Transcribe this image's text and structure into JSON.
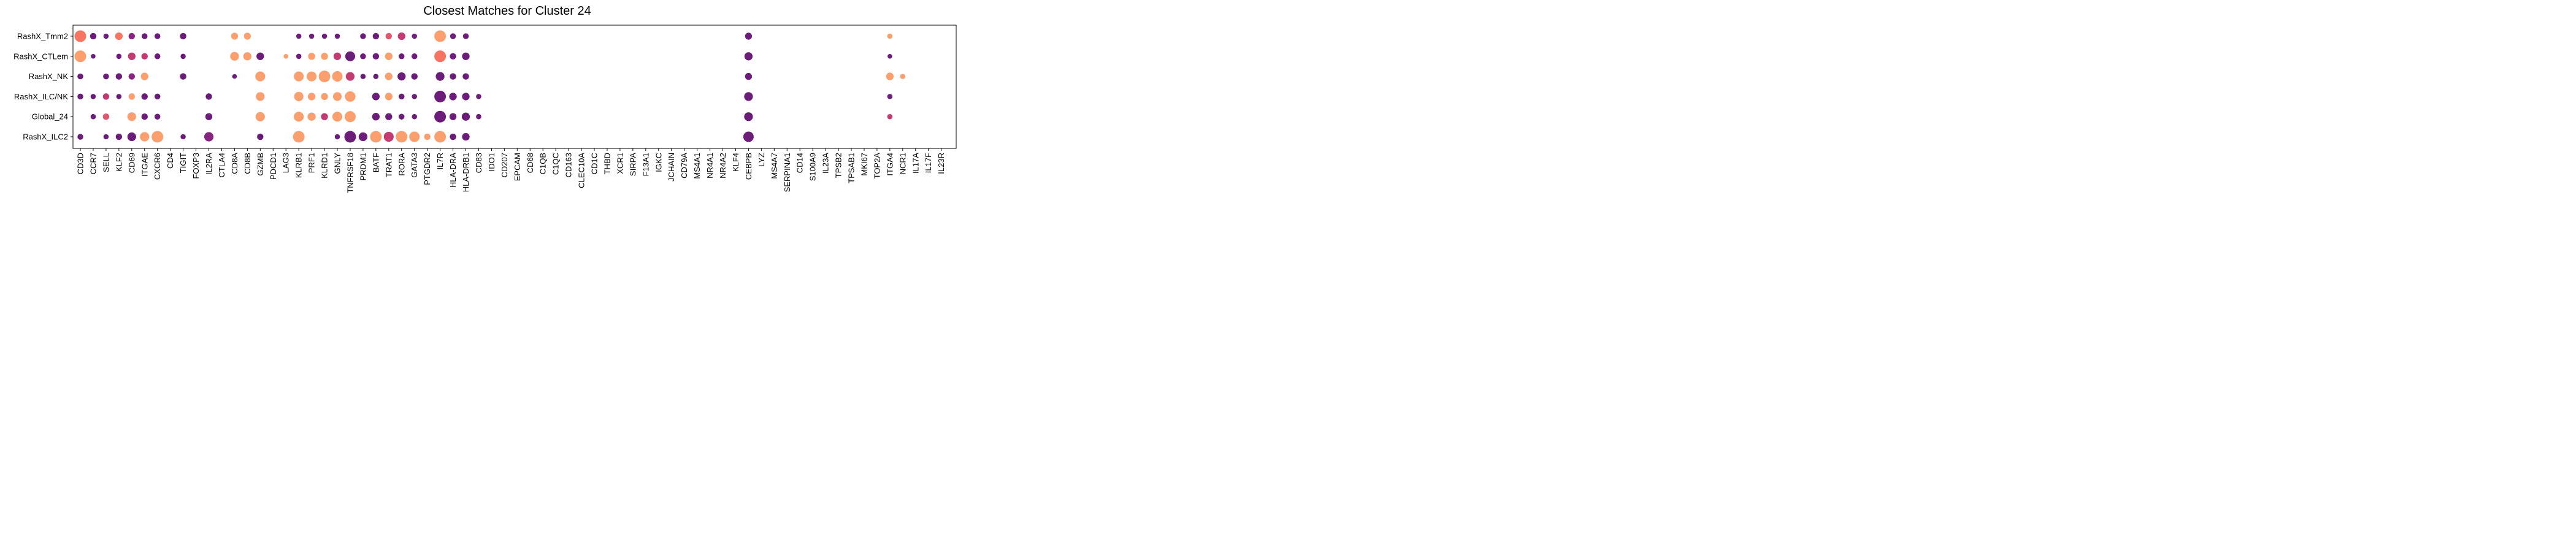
{
  "chart_data": {
    "type": "scatter",
    "title": "Closest Matches for Cluster 24",
    "rows": [
      "RashX_Tmm2",
      "RashX_CTLem",
      "RashX_NK",
      "RashX_ILC/NK",
      "Global_24",
      "RashX_ILC2"
    ],
    "columns": [
      "CD3D",
      "CCR7",
      "SELL",
      "KLF2",
      "CD69",
      "ITGAE",
      "CXCR6",
      "CD4",
      "TIGIT",
      "FOXP3",
      "IL2RA",
      "CTLA4",
      "CD8A",
      "CD8B",
      "GZMB",
      "PDCD1",
      "LAG3",
      "KLRB1",
      "PRF1",
      "KLRD1",
      "GNLY",
      "TNFRSF18",
      "PRDM1",
      "BATF",
      "TRAT1",
      "RORA",
      "GATA3",
      "PTGDR2",
      "IL7R",
      "HLA-DRA",
      "HLA-DRB1",
      "CD83",
      "IDO1",
      "CD207",
      "EPCAM",
      "CD68",
      "C1QB",
      "C1QC",
      "CD163",
      "CLEC10A",
      "CD1C",
      "THBD",
      "XCR1",
      "SIRPA",
      "F13A1",
      "IGKC",
      "JCHAIN",
      "CD79A",
      "MS4A1",
      "NR4A1",
      "NR4A2",
      "KLF4",
      "CEBPB",
      "LYZ",
      "MS4A7",
      "SERPINA1",
      "CD14",
      "S100A9",
      "IL23A",
      "TPSB2",
      "TPSAB1",
      "MKI67",
      "TOP2A",
      "ITGA4",
      "NCR1",
      "IL17A",
      "IL17F",
      "IL23R"
    ],
    "colors": {
      "dark": "#6b1d79",
      "purple": "#882580",
      "magenta": "#c23c72",
      "pink": "#e0566c",
      "coral": "#f77462",
      "peach": "#fb9f6e"
    },
    "points": [
      [
        "RashX_Tmm2",
        "CD3D",
        1.0,
        "coral"
      ],
      [
        "RashX_Tmm2",
        "CCR7",
        0.55,
        "dark"
      ],
      [
        "RashX_Tmm2",
        "SELL",
        0.45,
        "dark"
      ],
      [
        "RashX_Tmm2",
        "KLF2",
        0.65,
        "coral"
      ],
      [
        "RashX_Tmm2",
        "CD69",
        0.55,
        "purple"
      ],
      [
        "RashX_Tmm2",
        "ITGAE",
        0.5,
        "dark"
      ],
      [
        "RashX_Tmm2",
        "CXCR6",
        0.5,
        "dark"
      ],
      [
        "RashX_Tmm2",
        "TIGIT",
        0.55,
        "dark"
      ],
      [
        "RashX_Tmm2",
        "CD8A",
        0.6,
        "peach"
      ],
      [
        "RashX_Tmm2",
        "CD8B",
        0.6,
        "peach"
      ],
      [
        "RashX_Tmm2",
        "KLRB1",
        0.45,
        "dark"
      ],
      [
        "RashX_Tmm2",
        "PRF1",
        0.45,
        "dark"
      ],
      [
        "RashX_Tmm2",
        "KLRD1",
        0.45,
        "dark"
      ],
      [
        "RashX_Tmm2",
        "GNLY",
        0.45,
        "dark"
      ],
      [
        "RashX_Tmm2",
        "PRDM1",
        0.5,
        "dark"
      ],
      [
        "RashX_Tmm2",
        "BATF",
        0.55,
        "dark"
      ],
      [
        "RashX_Tmm2",
        "TRAT1",
        0.55,
        "pink"
      ],
      [
        "RashX_Tmm2",
        "RORA",
        0.65,
        "magenta"
      ],
      [
        "RashX_Tmm2",
        "GATA3",
        0.45,
        "dark"
      ],
      [
        "RashX_Tmm2",
        "IL7R",
        1.0,
        "peach"
      ],
      [
        "RashX_Tmm2",
        "HLA-DRA",
        0.5,
        "dark"
      ],
      [
        "RashX_Tmm2",
        "HLA-DRB1",
        0.5,
        "dark"
      ],
      [
        "RashX_Tmm2",
        "CEBPB",
        0.6,
        "dark"
      ],
      [
        "RashX_Tmm2",
        "ITGA4",
        0.45,
        "peach"
      ],
      [
        "RashX_CTLem",
        "CD3D",
        1.0,
        "peach"
      ],
      [
        "RashX_CTLem",
        "CCR7",
        0.4,
        "dark"
      ],
      [
        "RashX_CTLem",
        "KLF2",
        0.45,
        "dark"
      ],
      [
        "RashX_CTLem",
        "CD69",
        0.65,
        "magenta"
      ],
      [
        "RashX_CTLem",
        "ITGAE",
        0.55,
        "magenta"
      ],
      [
        "RashX_CTLem",
        "CXCR6",
        0.5,
        "dark"
      ],
      [
        "RashX_CTLem",
        "TIGIT",
        0.45,
        "dark"
      ],
      [
        "RashX_CTLem",
        "CD8A",
        0.75,
        "peach"
      ],
      [
        "RashX_CTLem",
        "CD8B",
        0.7,
        "peach"
      ],
      [
        "RashX_CTLem",
        "GZMB",
        0.65,
        "dark"
      ],
      [
        "RashX_CTLem",
        "LAG3",
        0.4,
        "peach"
      ],
      [
        "RashX_CTLem",
        "KLRB1",
        0.45,
        "dark"
      ],
      [
        "RashX_CTLem",
        "PRF1",
        0.6,
        "peach"
      ],
      [
        "RashX_CTLem",
        "KLRD1",
        0.6,
        "peach"
      ],
      [
        "RashX_CTLem",
        "GNLY",
        0.65,
        "magenta"
      ],
      [
        "RashX_CTLem",
        "TNFRSF18",
        0.85,
        "dark"
      ],
      [
        "RashX_CTLem",
        "PRDM1",
        0.5,
        "dark"
      ],
      [
        "RashX_CTLem",
        "BATF",
        0.55,
        "dark"
      ],
      [
        "RashX_CTLem",
        "TRAT1",
        0.65,
        "peach"
      ],
      [
        "RashX_CTLem",
        "RORA",
        0.5,
        "dark"
      ],
      [
        "RashX_CTLem",
        "GATA3",
        0.5,
        "dark"
      ],
      [
        "RashX_CTLem",
        "IL7R",
        1.0,
        "coral"
      ],
      [
        "RashX_CTLem",
        "HLA-DRA",
        0.55,
        "dark"
      ],
      [
        "RashX_CTLem",
        "HLA-DRB1",
        0.65,
        "dark"
      ],
      [
        "RashX_CTLem",
        "CEBPB",
        0.7,
        "dark"
      ],
      [
        "RashX_CTLem",
        "ITGA4",
        0.4,
        "dark"
      ],
      [
        "RashX_NK",
        "CD3D",
        0.5,
        "dark"
      ],
      [
        "RashX_NK",
        "SELL",
        0.5,
        "dark"
      ],
      [
        "RashX_NK",
        "KLF2",
        0.55,
        "dark"
      ],
      [
        "RashX_NK",
        "CD69",
        0.55,
        "purple"
      ],
      [
        "RashX_NK",
        "ITGAE",
        0.65,
        "peach"
      ],
      [
        "RashX_NK",
        "TIGIT",
        0.55,
        "dark"
      ],
      [
        "RashX_NK",
        "CD8A",
        0.4,
        "dark"
      ],
      [
        "RashX_NK",
        "GZMB",
        0.85,
        "peach"
      ],
      [
        "RashX_NK",
        "KLRB1",
        0.85,
        "peach"
      ],
      [
        "RashX_NK",
        "PRF1",
        0.85,
        "peach"
      ],
      [
        "RashX_NK",
        "KLRD1",
        1.0,
        "peach"
      ],
      [
        "RashX_NK",
        "GNLY",
        0.9,
        "peach"
      ],
      [
        "RashX_NK",
        "TNFRSF18",
        0.75,
        "magenta"
      ],
      [
        "RashX_NK",
        "PRDM1",
        0.45,
        "dark"
      ],
      [
        "RashX_NK",
        "BATF",
        0.45,
        "dark"
      ],
      [
        "RashX_NK",
        "TRAT1",
        0.65,
        "peach"
      ],
      [
        "RashX_NK",
        "RORA",
        0.7,
        "dark"
      ],
      [
        "RashX_NK",
        "GATA3",
        0.55,
        "dark"
      ],
      [
        "RashX_NK",
        "IL7R",
        0.75,
        "dark"
      ],
      [
        "RashX_NK",
        "HLA-DRA",
        0.55,
        "dark"
      ],
      [
        "RashX_NK",
        "HLA-DRB1",
        0.55,
        "dark"
      ],
      [
        "RashX_NK",
        "CEBPB",
        0.6,
        "dark"
      ],
      [
        "RashX_NK",
        "ITGA4",
        0.65,
        "peach"
      ],
      [
        "RashX_NK",
        "NCR1",
        0.45,
        "peach"
      ],
      [
        "RashX_ILC/NK",
        "CD3D",
        0.5,
        "dark"
      ],
      [
        "RashX_ILC/NK",
        "CCR7",
        0.45,
        "dark"
      ],
      [
        "RashX_ILC/NK",
        "SELL",
        0.55,
        "magenta"
      ],
      [
        "RashX_ILC/NK",
        "KLF2",
        0.45,
        "dark"
      ],
      [
        "RashX_ILC/NK",
        "CD69",
        0.55,
        "peach"
      ],
      [
        "RashX_ILC/NK",
        "ITGAE",
        0.55,
        "dark"
      ],
      [
        "RashX_ILC/NK",
        "CXCR6",
        0.5,
        "dark"
      ],
      [
        "RashX_ILC/NK",
        "IL2RA",
        0.55,
        "dark"
      ],
      [
        "RashX_ILC/NK",
        "GZMB",
        0.75,
        "peach"
      ],
      [
        "RashX_ILC/NK",
        "KLRB1",
        0.8,
        "peach"
      ],
      [
        "RashX_ILC/NK",
        "PRF1",
        0.65,
        "peach"
      ],
      [
        "RashX_ILC/NK",
        "KLRD1",
        0.6,
        "peach"
      ],
      [
        "RashX_ILC/NK",
        "GNLY",
        0.75,
        "peach"
      ],
      [
        "RashX_ILC/NK",
        "TNFRSF18",
        0.9,
        "peach"
      ],
      [
        "RashX_ILC/NK",
        "BATF",
        0.65,
        "dark"
      ],
      [
        "RashX_ILC/NK",
        "TRAT1",
        0.65,
        "peach"
      ],
      [
        "RashX_ILC/NK",
        "RORA",
        0.5,
        "dark"
      ],
      [
        "RashX_ILC/NK",
        "GATA3",
        0.45,
        "dark"
      ],
      [
        "RashX_ILC/NK",
        "IL7R",
        1.0,
        "dark"
      ],
      [
        "RashX_ILC/NK",
        "HLA-DRA",
        0.65,
        "dark"
      ],
      [
        "RashX_ILC/NK",
        "HLA-DRB1",
        0.65,
        "dark"
      ],
      [
        "RashX_ILC/NK",
        "CD83",
        0.45,
        "dark"
      ],
      [
        "RashX_ILC/NK",
        "CEBPB",
        0.75,
        "dark"
      ],
      [
        "RashX_ILC/NK",
        "ITGA4",
        0.45,
        "dark"
      ],
      [
        "Global_24",
        "CCR7",
        0.45,
        "dark"
      ],
      [
        "Global_24",
        "SELL",
        0.55,
        "pink"
      ],
      [
        "Global_24",
        "CD69",
        0.75,
        "peach"
      ],
      [
        "Global_24",
        "ITGAE",
        0.55,
        "dark"
      ],
      [
        "Global_24",
        "CXCR6",
        0.5,
        "dark"
      ],
      [
        "Global_24",
        "IL2RA",
        0.6,
        "dark"
      ],
      [
        "Global_24",
        "GZMB",
        0.8,
        "peach"
      ],
      [
        "Global_24",
        "KLRB1",
        0.85,
        "peach"
      ],
      [
        "Global_24",
        "PRF1",
        0.7,
        "peach"
      ],
      [
        "Global_24",
        "KLRD1",
        0.6,
        "magenta"
      ],
      [
        "Global_24",
        "GNLY",
        0.85,
        "peach"
      ],
      [
        "Global_24",
        "TNFRSF18",
        0.95,
        "peach"
      ],
      [
        "Global_24",
        "BATF",
        0.65,
        "dark"
      ],
      [
        "Global_24",
        "TRAT1",
        0.6,
        "dark"
      ],
      [
        "Global_24",
        "RORA",
        0.5,
        "dark"
      ],
      [
        "Global_24",
        "GATA3",
        0.45,
        "dark"
      ],
      [
        "Global_24",
        "IL7R",
        1.0,
        "dark"
      ],
      [
        "Global_24",
        "HLA-DRA",
        0.6,
        "dark"
      ],
      [
        "Global_24",
        "HLA-DRB1",
        0.7,
        "dark"
      ],
      [
        "Global_24",
        "CD83",
        0.45,
        "dark"
      ],
      [
        "Global_24",
        "CEBPB",
        0.75,
        "dark"
      ],
      [
        "Global_24",
        "ITGA4",
        0.45,
        "magenta"
      ],
      [
        "RashX_ILC2",
        "CD3D",
        0.5,
        "dark"
      ],
      [
        "RashX_ILC2",
        "SELL",
        0.45,
        "dark"
      ],
      [
        "RashX_ILC2",
        "KLF2",
        0.55,
        "dark"
      ],
      [
        "RashX_ILC2",
        "CD69",
        0.75,
        "dark"
      ],
      [
        "RashX_ILC2",
        "ITGAE",
        0.8,
        "peach"
      ],
      [
        "RashX_ILC2",
        "CXCR6",
        1.0,
        "peach"
      ],
      [
        "RashX_ILC2",
        "TIGIT",
        0.45,
        "dark"
      ],
      [
        "RashX_ILC2",
        "IL2RA",
        0.8,
        "purple"
      ],
      [
        "RashX_ILC2",
        "GZMB",
        0.55,
        "dark"
      ],
      [
        "RashX_ILC2",
        "KLRB1",
        1.0,
        "peach"
      ],
      [
        "RashX_ILC2",
        "GNLY",
        0.45,
        "dark"
      ],
      [
        "RashX_ILC2",
        "TNFRSF18",
        1.0,
        "dark"
      ],
      [
        "RashX_ILC2",
        "PRDM1",
        0.75,
        "dark"
      ],
      [
        "RashX_ILC2",
        "BATF",
        1.0,
        "peach"
      ],
      [
        "RashX_ILC2",
        "TRAT1",
        0.85,
        "magenta"
      ],
      [
        "RashX_ILC2",
        "RORA",
        1.0,
        "peach"
      ],
      [
        "RashX_ILC2",
        "GATA3",
        0.9,
        "peach"
      ],
      [
        "RashX_ILC2",
        "PTGDR2",
        0.55,
        "peach"
      ],
      [
        "RashX_ILC2",
        "IL7R",
        1.0,
        "peach"
      ],
      [
        "RashX_ILC2",
        "HLA-DRA",
        0.55,
        "dark"
      ],
      [
        "RashX_ILC2",
        "HLA-DRB1",
        0.65,
        "dark"
      ],
      [
        "RashX_ILC2",
        "CEBPB",
        0.9,
        "dark"
      ]
    ],
    "xlabel": "",
    "ylabel": "",
    "grid": false,
    "legend": "none"
  }
}
